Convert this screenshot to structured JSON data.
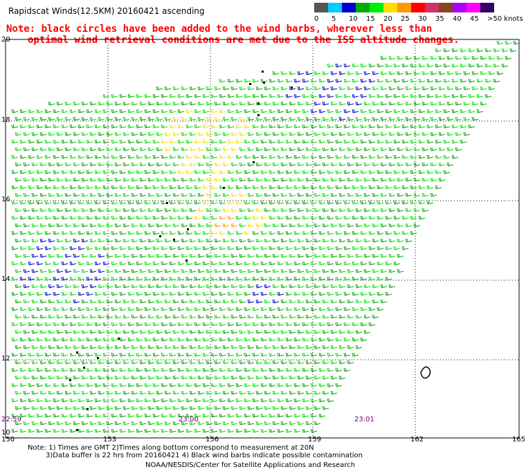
{
  "title": "Rapidscat Winds(12.5KM) 20160421 ascending",
  "note": {
    "line1": "Note: black circles have been added to the wind barbs, wherever less than",
    "line2": "optimal wind retrieval conditions are met due to the ISS altitude changes."
  },
  "scale": {
    "colors": [
      "#555555",
      "#00ccff",
      "#0000cc",
      "#00aa00",
      "#00ee00",
      "#ffdd00",
      "#ff9900",
      "#ff0000",
      "#cc3366",
      "#884422",
      "#aa00ff",
      "#ff00ff",
      "#330066"
    ],
    "labels": [
      "0",
      "5",
      "10",
      "15",
      "20",
      "25",
      "30",
      "35",
      "40",
      "45",
      ">50 knots"
    ]
  },
  "lat_labels": [
    "20",
    "18",
    "16",
    "14",
    "12",
    "10"
  ],
  "lon_labels": [
    "150",
    "153",
    "156",
    "159",
    "162",
    "165"
  ],
  "times": [
    "22:59",
    "23:00",
    "23:01"
  ],
  "footer": {
    "line1": "Note: 1) Times are GMT 2)Times along bottom correspond to measurement at 20N",
    "line2": "3)Data buffer is 22 hrs from 20160421 4) Black wind barbs indicate possible contamination",
    "line3": "NOAA/NESDIS/Center for Satellite Applications and Research"
  }
}
